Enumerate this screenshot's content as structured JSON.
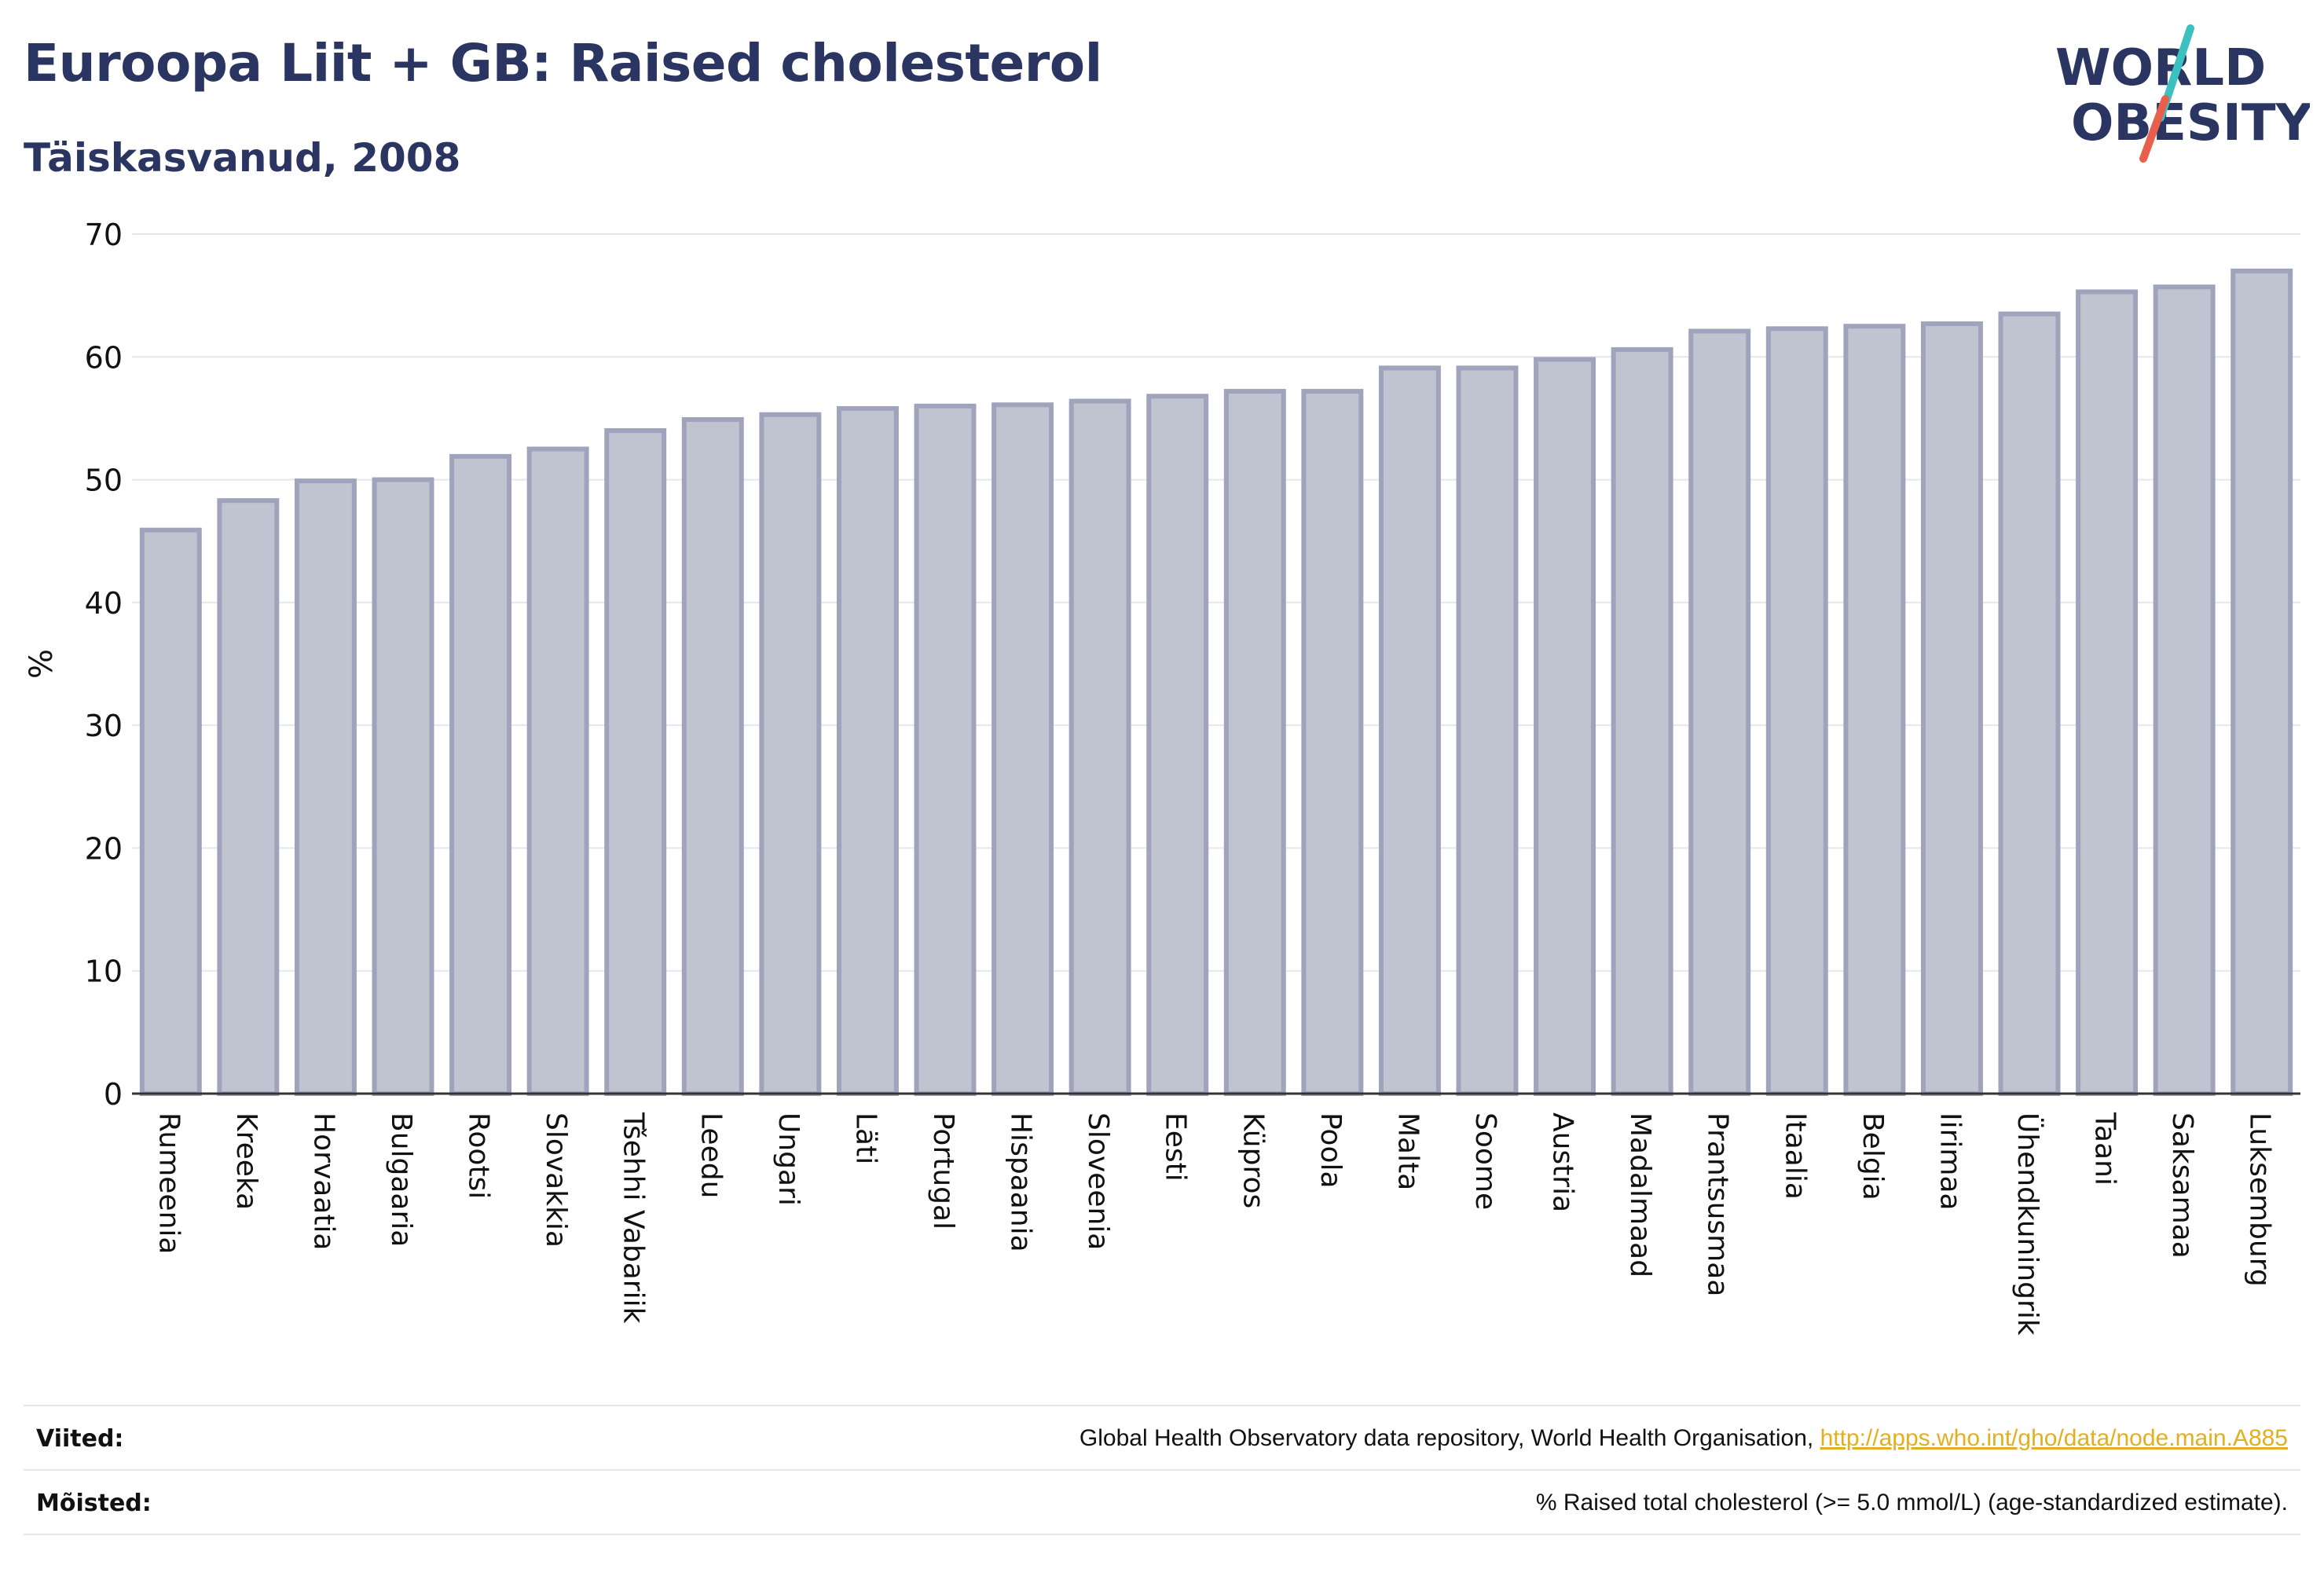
{
  "header": {
    "title": "Euroopa Liit + GB: Raised cholesterol",
    "subtitle": "Täiskasvanud, 2008"
  },
  "logo": {
    "line1": "WORLD",
    "line2": "OBESITY",
    "colors": {
      "text": "#2b3562",
      "slash_top": "#3cc0c0",
      "slash_bottom": "#e8604c"
    }
  },
  "colors": {
    "bar_fill": "#c0c3d0",
    "bar_stroke": "#9fa3bb",
    "grid": "#e5e7ee",
    "axis": "#333333",
    "text": "#2b3562"
  },
  "chart_data": {
    "type": "bar",
    "title": "Euroopa Liit + GB: Raised cholesterol",
    "subtitle": "Täiskasvanud, 2008",
    "xlabel": "",
    "ylabel": "%",
    "ylim": [
      0,
      70
    ],
    "yticks": [
      0,
      10,
      20,
      30,
      40,
      50,
      60,
      70
    ],
    "grid": true,
    "categories": [
      "Rumeenia",
      "Kreeka",
      "Horvaatia",
      "Bulgaaria",
      "Rootsi",
      "Slovakkia",
      "Tšehhi Vabariik",
      "Leedu",
      "Ungari",
      "Läti",
      "Portugal",
      "Hispaania",
      "Sloveenia",
      "Eesti",
      "Küpros",
      "Poola",
      "Malta",
      "Soome",
      "Austria",
      "Madalmaad",
      "Prantsusmaa",
      "Itaalia",
      "Belgia",
      "Iirimaa",
      "Ühendkuningrik",
      "Taani",
      "Saksamaa",
      "Luksemburg"
    ],
    "values": [
      45.9,
      48.3,
      49.9,
      50.0,
      51.9,
      52.5,
      54.0,
      54.9,
      55.3,
      55.8,
      56.0,
      56.1,
      56.4,
      56.8,
      57.2,
      57.2,
      59.1,
      59.1,
      59.8,
      60.6,
      62.1,
      62.3,
      62.5,
      62.7,
      63.5,
      65.3,
      65.7,
      67.0
    ]
  },
  "footer": {
    "sources_label": "Viited:",
    "sources_text": "Global Health Observatory data repository, World Health Organisation, ",
    "sources_link": "http://apps.who.int/gho/data/node.main.A885",
    "definitions_label": "Mõisted:",
    "definitions_text": "% Raised total cholesterol (>= 5.0 mmol/L) (age-standardized estimate)."
  }
}
